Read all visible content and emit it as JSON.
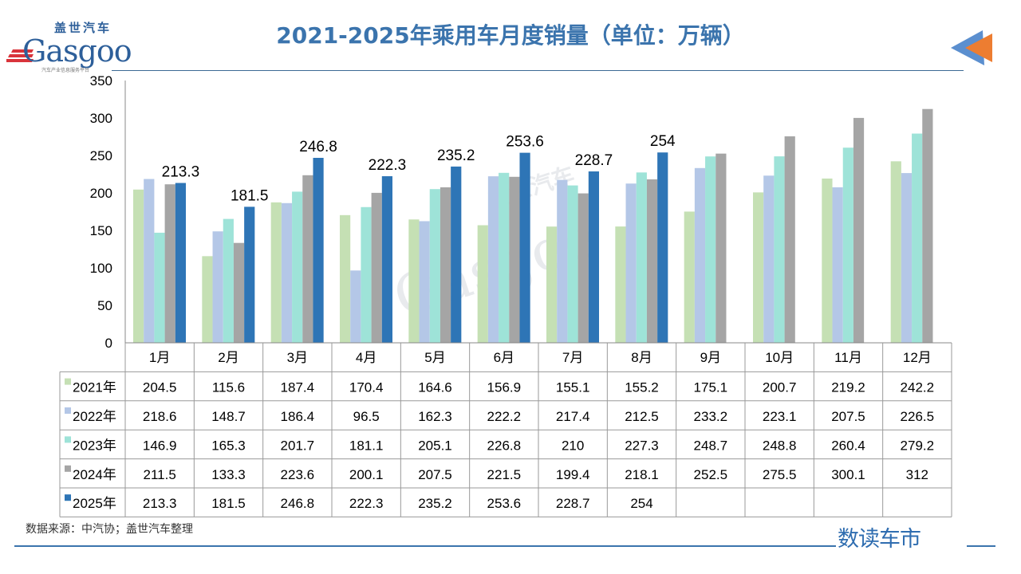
{
  "header": {
    "title": "2021-2025年乘用车月度销量（单位：万辆）"
  },
  "logo": {
    "cn": "盖世汽车",
    "en": "Gasgoo",
    "sub": "汽车产业信息服务平台"
  },
  "footer": {
    "source": "数据来源：中汽协；盖世汽车整理",
    "brand": "数读车市"
  },
  "colors": {
    "accent": "#3b74ad",
    "arrow_blue": "#5b8fcf",
    "arrow_orange": "#ed7d31"
  },
  "chart_data": {
    "type": "bar",
    "title": "2021-2025年乘用车月度销量（单位：万辆）",
    "xlabel": "",
    "ylabel": "",
    "ylim": [
      0,
      350
    ],
    "yticks": [
      "0",
      "50",
      "100",
      "150",
      "200",
      "250",
      "300",
      "350"
    ],
    "grid": false,
    "categories": [
      "1月",
      "2月",
      "3月",
      "4月",
      "5月",
      "6月",
      "7月",
      "8月",
      "9月",
      "10月",
      "11月",
      "12月"
    ],
    "series": [
      {
        "name": "2021年",
        "color": "#c5e0b4",
        "values": [
          204.5,
          115.6,
          187.4,
          170.4,
          164.6,
          156.9,
          155.1,
          155.2,
          175.1,
          200.7,
          219.2,
          242.2
        ]
      },
      {
        "name": "2022年",
        "color": "#b4c7e7",
        "values": [
          218.6,
          148.7,
          186.4,
          96.5,
          162.3,
          222.2,
          217.4,
          212.5,
          233.2,
          223.1,
          207.5,
          226.5
        ]
      },
      {
        "name": "2023年",
        "color": "#9ee3d8",
        "values": [
          146.9,
          165.3,
          201.7,
          181.1,
          205.1,
          226.8,
          210,
          227.3,
          248.7,
          248.8,
          260.4,
          279.2
        ]
      },
      {
        "name": "2024年",
        "color": "#a5a5a5",
        "values": [
          211.5,
          133.3,
          223.6,
          200.1,
          207.5,
          221.5,
          199.4,
          218.1,
          252.5,
          275.5,
          300.1,
          312
        ]
      },
      {
        "name": "2025年",
        "color": "#2e75b6",
        "values": [
          213.3,
          181.5,
          246.8,
          222.3,
          235.2,
          253.6,
          228.7,
          254,
          null,
          null,
          null,
          null
        ],
        "labeled": true
      }
    ],
    "legend": "data-table"
  }
}
